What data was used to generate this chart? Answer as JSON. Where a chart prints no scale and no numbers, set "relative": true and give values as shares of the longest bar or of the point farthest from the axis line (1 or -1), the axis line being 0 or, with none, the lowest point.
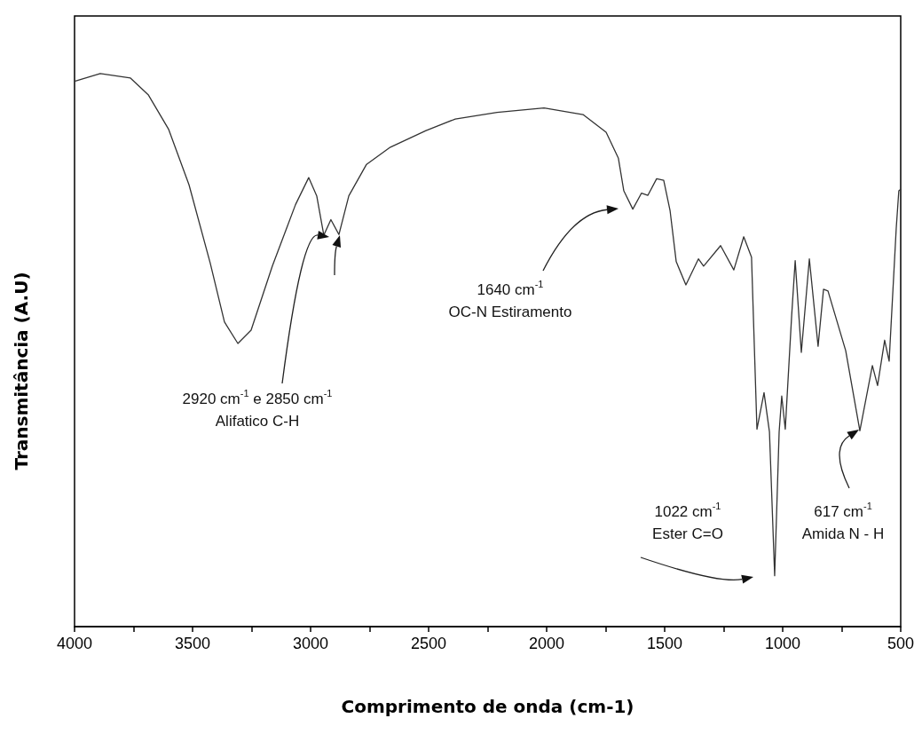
{
  "chart_data": {
    "type": "line",
    "relative": true,
    "xlabel": "Comprimento de onda (cm-1)",
    "ylabel": "Transmitância (A.U)",
    "xlim": [
      4000,
      500
    ],
    "xticks": [
      4000,
      {
        "value": 3750,
        "label": null
      },
      3500,
      {
        "value": 3250,
        "label": null
      },
      3000,
      {
        "value": 2750,
        "label": null
      },
      2500,
      {
        "value": 2250,
        "label": null
      },
      2000,
      {
        "value": 1750,
        "label": null
      },
      1500,
      {
        "value": 1250,
        "label": null
      },
      1000,
      {
        "value": 750,
        "label": null
      },
      500
    ],
    "series": [
      {
        "color": "#333333",
        "x": [
          4000,
          3891,
          3763,
          3688,
          3601,
          3515,
          3425,
          3365,
          3308,
          3252,
          3162,
          3064,
          3008,
          2974,
          2944,
          2914,
          2880,
          2838,
          2763,
          2662,
          2511,
          2387,
          2210,
          2011,
          1846,
          1748,
          1696,
          1673,
          1635,
          1598,
          1571,
          1534,
          1504,
          1477,
          1451,
          1410,
          1357,
          1335,
          1263,
          1207,
          1165,
          1132,
          1109,
          1079,
          1056,
          1034,
          1015,
          1004,
          989,
          962,
          947,
          921,
          887,
          850,
          827,
          808,
          733,
          673,
          620,
          598,
          568,
          549,
          519,
          508,
          500
        ],
        "values": [
          0.986,
          1.0,
          0.992,
          0.962,
          0.899,
          0.799,
          0.657,
          0.551,
          0.512,
          0.536,
          0.652,
          0.763,
          0.812,
          0.779,
          0.708,
          0.736,
          0.709,
          0.779,
          0.836,
          0.867,
          0.897,
          0.918,
          0.93,
          0.938,
          0.926,
          0.894,
          0.847,
          0.788,
          0.755,
          0.784,
          0.78,
          0.81,
          0.807,
          0.752,
          0.66,
          0.618,
          0.665,
          0.652,
          0.689,
          0.645,
          0.705,
          0.668,
          0.357,
          0.423,
          0.352,
          0.092,
          0.352,
          0.417,
          0.357,
          0.562,
          0.662,
          0.496,
          0.665,
          0.507,
          0.61,
          0.607,
          0.499,
          0.354,
          0.472,
          0.436,
          0.518,
          0.48,
          0.72,
          0.788,
          0.791
        ]
      }
    ],
    "annotations": [
      "2920 cm$^{-1}$ e 2850 cm$^{-1}$",
      "Alifatico C-H",
      "1640 cm$^{-1}$",
      "OC-N Estiramento",
      "1022 cm$^{-1}$",
      "Ester C=O",
      "617 cm$^{-1}$",
      "Amida N - H"
    ]
  }
}
